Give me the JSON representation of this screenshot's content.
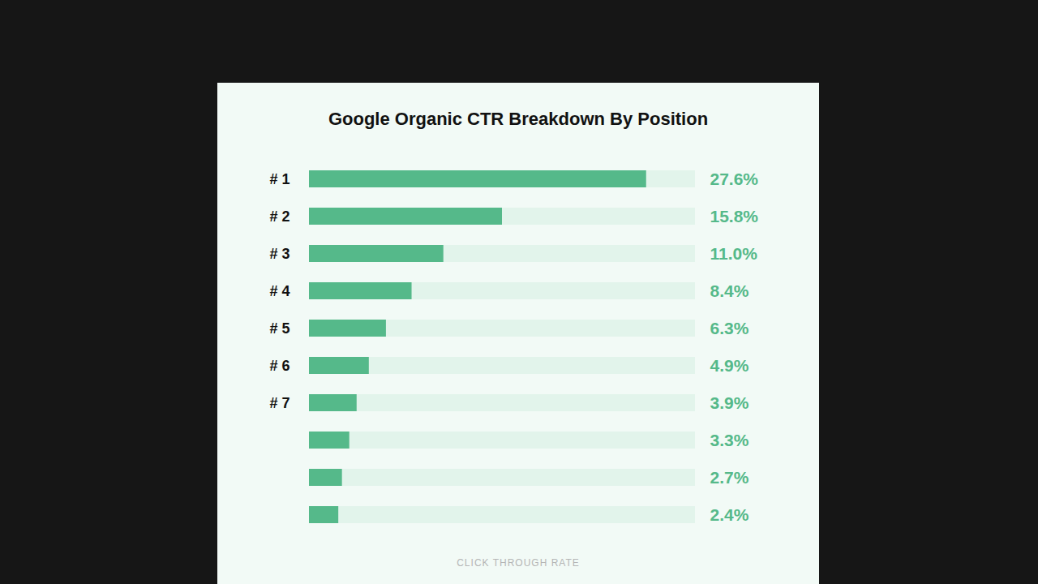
{
  "chart_data": {
    "type": "bar",
    "orientation": "horizontal",
    "title": "Google Organic CTR Breakdown By Position",
    "xlabel": "CLICK THROUGH RATE",
    "categories": [
      "# 1",
      "# 2",
      "# 3",
      "# 4",
      "# 5",
      "# 6",
      "# 7",
      null,
      null,
      null
    ],
    "values": [
      27.6,
      15.8,
      11.0,
      8.4,
      6.3,
      4.9,
      3.9,
      3.3,
      2.7,
      2.4
    ],
    "value_labels": [
      "27.6%",
      "15.8%",
      "11.0%",
      "8.4%",
      "6.3%",
      "4.9%",
      "3.9%",
      "3.3%",
      "2.7%",
      "2.4%"
    ],
    "data_labels": true,
    "color": "#55b98a",
    "xlim": [
      0,
      31.6
    ],
    "xticks": [],
    "tick_labels": "y",
    "grid": false
  }
}
